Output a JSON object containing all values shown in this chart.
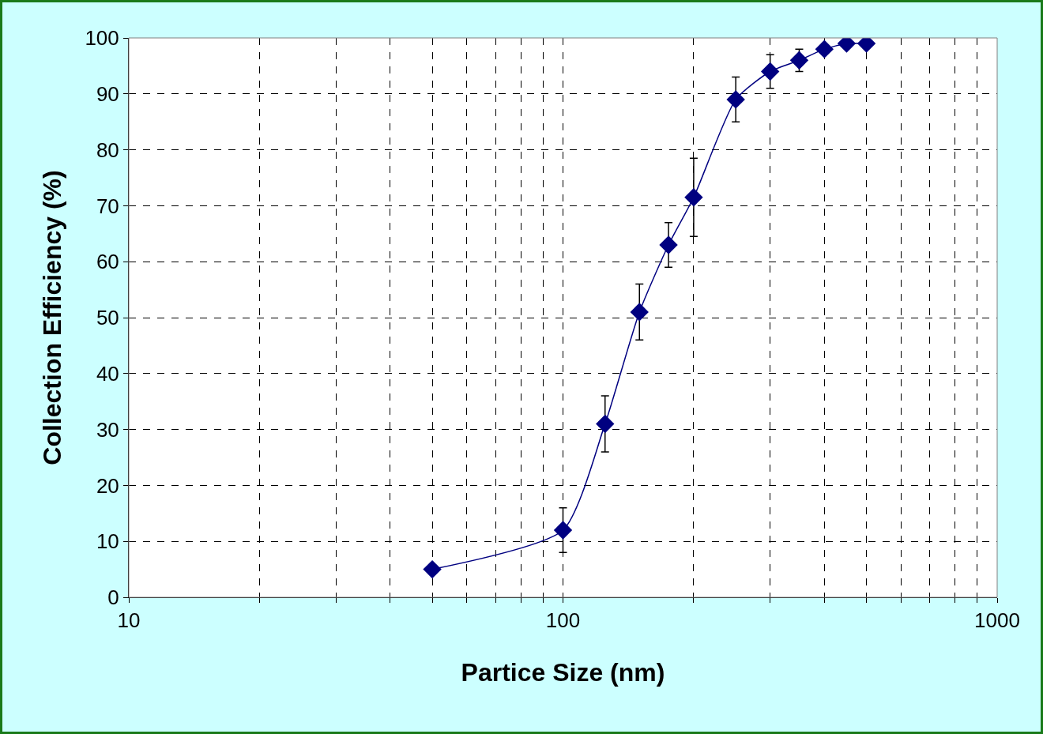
{
  "chart_data": {
    "type": "line",
    "xlabel": "Partice Size (nm)",
    "ylabel": "Collection Efficiency (%)",
    "log": "x",
    "x": [
      50,
      100,
      125,
      150,
      175,
      200,
      250,
      300,
      350,
      400,
      450,
      500
    ],
    "series": [
      {
        "color": "#000080",
        "values": [
          5,
          12,
          31,
          51,
          63,
          71.5,
          89,
          94,
          96,
          98,
          99,
          99
        ],
        "errors": [
          null,
          4,
          5,
          5,
          4,
          7,
          4,
          3,
          2,
          null,
          null,
          null
        ]
      }
    ],
    "xlim": [
      10,
      1000
    ],
    "xticks": [
      10,
      {
        "value": 20,
        "label": null
      },
      {
        "value": 30,
        "label": null
      },
      {
        "value": 40,
        "label": null
      },
      {
        "value": 50,
        "label": null
      },
      {
        "value": 60,
        "label": null
      },
      {
        "value": 70,
        "label": null
      },
      {
        "value": 80,
        "label": null
      },
      {
        "value": 90,
        "label": null
      },
      100,
      {
        "value": 200,
        "label": null
      },
      {
        "value": 300,
        "label": null
      },
      {
        "value": 400,
        "label": null
      },
      {
        "value": 500,
        "label": null
      },
      {
        "value": 600,
        "label": null
      },
      {
        "value": 700,
        "label": null
      },
      {
        "value": 800,
        "label": null
      },
      {
        "value": 900,
        "label": null
      },
      1000
    ],
    "ylim": [
      0,
      100
    ],
    "yticks": [
      0,
      10,
      20,
      30,
      40,
      50,
      60,
      70,
      80,
      90,
      100
    ],
    "grid": true,
    "marker": "diamond",
    "line_style": "solid"
  }
}
